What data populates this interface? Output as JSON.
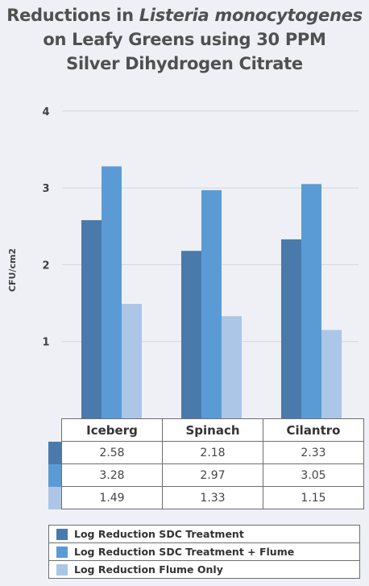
{
  "title_lines": [
    "Reductions in Listeria monocytogenes",
    "on Leafy Greens using 30 PPM",
    "Silver Dihydrogen Citrate"
  ],
  "title_italic": "Listeria monocytogenes",
  "colors": {
    "series1": "#4a7aac",
    "series2": "#5b9bd5",
    "series3": "#abc6e7",
    "grid": "#d2d6de"
  },
  "chart_data": {
    "type": "bar",
    "title": "Reductions in Listeria monocytogenes on Leafy Greens using 30 PPM Silver Dihydrogen Citrate",
    "xlabel": "",
    "ylabel": "CFU/cm2",
    "ylim": [
      0,
      4
    ],
    "yticks": [
      "1",
      "2",
      "3",
      "4"
    ],
    "grid": true,
    "legend_position": "bottom",
    "categories": [
      "Iceberg",
      "Spinach",
      "Cilantro"
    ],
    "series": [
      {
        "name": "Log Reduction SDC Treatment",
        "values": [
          2.58,
          2.18,
          2.33
        ],
        "labels": [
          "2.58",
          "2.18",
          "2.33"
        ]
      },
      {
        "name": "Log Reduction SDC Treatment + Flume",
        "values": [
          3.28,
          2.97,
          3.05
        ],
        "labels": [
          "3.28",
          "2.97",
          "3.05"
        ]
      },
      {
        "name": "Log Reduction Flume Only",
        "values": [
          1.49,
          1.33,
          1.15
        ],
        "labels": [
          "1.49",
          "1.33",
          "1.15"
        ]
      }
    ]
  }
}
